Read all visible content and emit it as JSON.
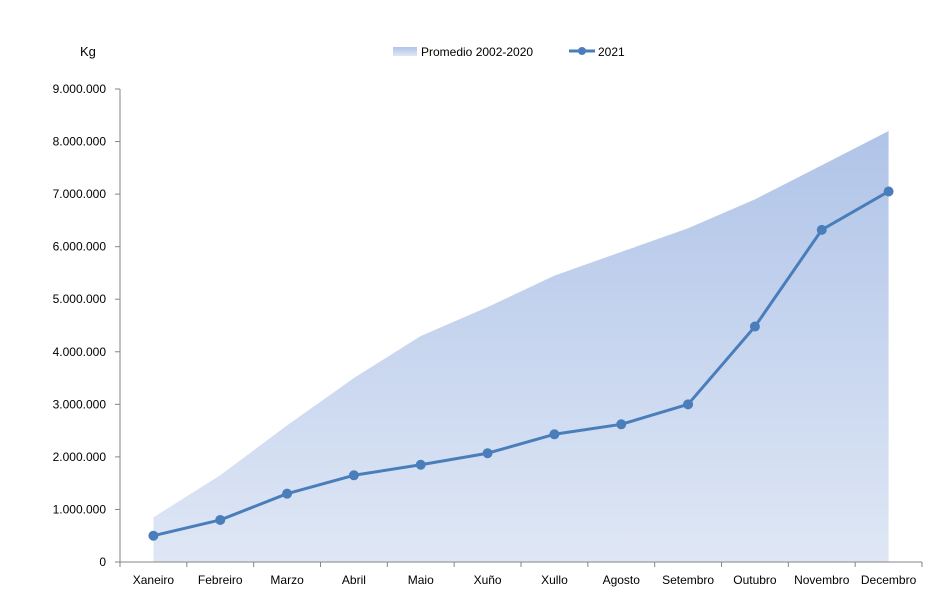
{
  "chart_data": {
    "type": "area",
    "title": "",
    "xlabel": "",
    "ylabel": "Kg",
    "ylim": [
      0,
      9000000
    ],
    "yticks": [
      0,
      1000000,
      2000000,
      3000000,
      4000000,
      5000000,
      6000000,
      7000000,
      8000000,
      9000000
    ],
    "ytick_labels": [
      "0",
      "1.000.000",
      "2.000.000",
      "3.000.000",
      "4.000.000",
      "5.000.000",
      "6.000.000",
      "7.000.000",
      "8.000.000",
      "9.000.000"
    ],
    "categories": [
      "Xaneiro",
      "Febreiro",
      "Marzo",
      "Abril",
      "Maio",
      "Xuño",
      "Xullo",
      "Agosto",
      "Setembro",
      "Outubro",
      "Novembro",
      "Decembro"
    ],
    "grid": false,
    "legend_position": "top-center",
    "series": [
      {
        "name": "Promedio 2002-2020",
        "kind": "area",
        "color": "#b4c7e7",
        "values": [
          850000,
          1650000,
          2600000,
          3500000,
          4300000,
          4850000,
          5450000,
          5900000,
          6350000,
          6900000,
          7550000,
          8200000
        ]
      },
      {
        "name": "2021",
        "kind": "line",
        "color": "#4a7ebb",
        "values": [
          500000,
          800000,
          1300000,
          1650000,
          1850000,
          2070000,
          2430000,
          2620000,
          3000000,
          4480000,
          6320000,
          7050000
        ]
      }
    ]
  }
}
